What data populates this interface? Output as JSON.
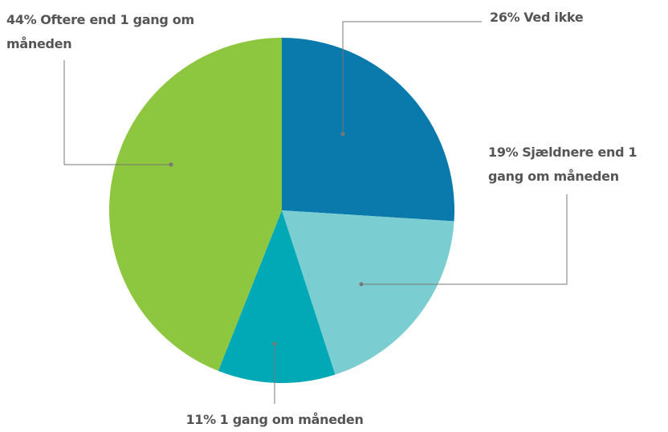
{
  "chart_data": {
    "type": "pie",
    "categories": [
      "Ved ikke",
      "Sjældnere end 1 gang om måneden",
      "1 gang om måneden",
      "Oftere end 1 gang om måneden"
    ],
    "values": [
      26,
      19,
      11,
      44
    ],
    "value_labels": [
      "26%",
      "19%",
      "11%",
      "44%"
    ],
    "colors": [
      "#0a7aad",
      "#7acdd0",
      "#00a9b5",
      "#8dc63f"
    ]
  }
}
